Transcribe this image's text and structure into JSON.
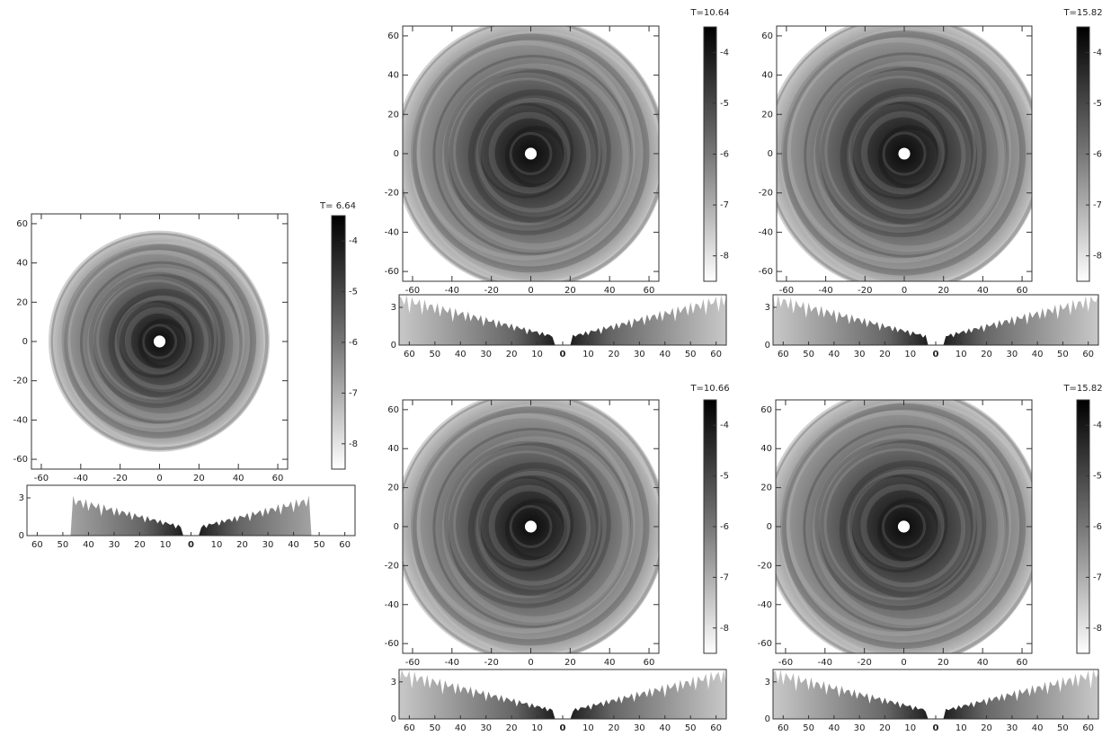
{
  "chart_data": [
    {
      "type": "image",
      "title": "T= 6.64",
      "xlim": [
        -65,
        65
      ],
      "ylim": [
        -65,
        65
      ],
      "xticks": [
        -60,
        -40,
        -20,
        0,
        20,
        40,
        60
      ],
      "yticks": [
        -60,
        -40,
        -20,
        0,
        20,
        40,
        60
      ],
      "colorbar": {
        "lim": [
          -8.5,
          -3.5
        ],
        "ticks": [
          -4,
          -5,
          -6,
          -7,
          -8
        ]
      },
      "profile": {
        "xlim": [
          -64,
          64
        ],
        "ylim": [
          0,
          4
        ],
        "yticks": [
          0,
          3
        ],
        "xticks": [
          {
            "value": -60,
            "label": "60"
          },
          {
            "value": -50,
            "label": "50"
          },
          {
            "value": -40,
            "label": "40"
          },
          {
            "value": -30,
            "label": "30"
          },
          {
            "value": -20,
            "label": "20"
          },
          {
            "value": -10,
            "label": "10"
          },
          0,
          10,
          20,
          30,
          40,
          50,
          60
        ]
      }
    },
    {
      "type": "image",
      "title": "T=10.64",
      "xlim": [
        -65,
        65
      ],
      "ylim": [
        -65,
        65
      ],
      "xticks": [
        -60,
        -40,
        -20,
        0,
        20,
        40,
        60
      ],
      "yticks": [
        -60,
        -40,
        -20,
        0,
        20,
        40,
        60
      ],
      "colorbar": {
        "lim": [
          -8.5,
          -3.5
        ],
        "ticks": [
          -4,
          -5,
          -6,
          -7,
          -8
        ]
      },
      "profile": {
        "xlim": [
          -64,
          64
        ],
        "ylim": [
          0,
          4
        ],
        "yticks": [
          0,
          3
        ],
        "xticks": [
          {
            "value": -60,
            "label": "60"
          },
          {
            "value": -50,
            "label": "50"
          },
          {
            "value": -40,
            "label": "40"
          },
          {
            "value": -30,
            "label": "30"
          },
          {
            "value": -20,
            "label": "20"
          },
          {
            "value": -10,
            "label": "10"
          },
          0,
          10,
          20,
          30,
          40,
          50,
          60
        ]
      }
    },
    {
      "type": "image",
      "title": "T=15.82",
      "xlim": [
        -65,
        65
      ],
      "ylim": [
        -65,
        65
      ],
      "xticks": [
        -60,
        -40,
        -20,
        0,
        20,
        40,
        60
      ],
      "yticks": [
        -60,
        -40,
        -20,
        0,
        20,
        40,
        60
      ],
      "colorbar": {
        "lim": [
          -8.5,
          -3.5
        ],
        "ticks": [
          -4,
          -5,
          -6,
          -7,
          -8
        ]
      },
      "profile": {
        "xlim": [
          -64,
          64
        ],
        "ylim": [
          0,
          4
        ],
        "yticks": [
          0,
          3
        ],
        "xticks": [
          {
            "value": -60,
            "label": "60"
          },
          {
            "value": -50,
            "label": "50"
          },
          {
            "value": -40,
            "label": "40"
          },
          {
            "value": -30,
            "label": "30"
          },
          {
            "value": -20,
            "label": "20"
          },
          {
            "value": -10,
            "label": "10"
          },
          0,
          10,
          20,
          30,
          40,
          50,
          60
        ]
      }
    },
    {
      "type": "image",
      "title": "T=10.66",
      "xlim": [
        -65,
        65
      ],
      "ylim": [
        -65,
        65
      ],
      "xticks": [
        -60,
        -40,
        -20,
        0,
        20,
        40,
        60
      ],
      "yticks": [
        -60,
        -40,
        -20,
        0,
        20,
        40,
        60
      ],
      "colorbar": {
        "lim": [
          -8.5,
          -3.5
        ],
        "ticks": [
          -4,
          -5,
          -6,
          -7,
          -8
        ]
      },
      "profile": {
        "xlim": [
          -64,
          64
        ],
        "ylim": [
          0,
          4
        ],
        "yticks": [
          0,
          3
        ],
        "xticks": [
          {
            "value": -60,
            "label": "60"
          },
          {
            "value": -50,
            "label": "50"
          },
          {
            "value": -40,
            "label": "40"
          },
          {
            "value": -30,
            "label": "30"
          },
          {
            "value": -20,
            "label": "20"
          },
          {
            "value": -10,
            "label": "10"
          },
          0,
          10,
          20,
          30,
          40,
          50,
          60
        ]
      }
    },
    {
      "type": "image",
      "title": "T=15.82",
      "xlim": [
        -65,
        65
      ],
      "ylim": [
        -65,
        65
      ],
      "xticks": [
        -60,
        -40,
        -20,
        0,
        20,
        40,
        60
      ],
      "yticks": [
        -60,
        -40,
        -20,
        0,
        20,
        40,
        60
      ],
      "colorbar": {
        "lim": [
          -8.5,
          -3.5
        ],
        "ticks": [
          -4,
          -5,
          -6,
          -7,
          -8
        ]
      },
      "profile": {
        "xlim": [
          -64,
          64
        ],
        "ylim": [
          0,
          4
        ],
        "yticks": [
          0,
          3
        ],
        "xticks": [
          {
            "value": -60,
            "label": "60"
          },
          {
            "value": -50,
            "label": "50"
          },
          {
            "value": -40,
            "label": "40"
          },
          {
            "value": -30,
            "label": "30"
          },
          {
            "value": -20,
            "label": "20"
          },
          {
            "value": -10,
            "label": "10"
          },
          0,
          10,
          20,
          30,
          40,
          50,
          60
        ]
      }
    }
  ]
}
